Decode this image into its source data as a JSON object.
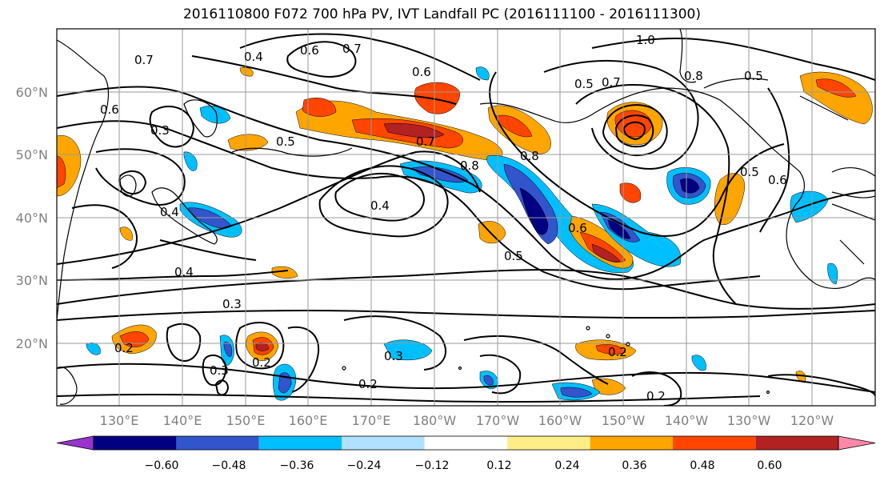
{
  "title": "2016110800 F072 700 hPa PV, IVT Landfall PC (2016111100 - 2016111300)",
  "lat_ticks": [
    "60°N",
    "50°N",
    "40°N",
    "30°N",
    "20°N"
  ],
  "lon_ticks": [
    "130°E",
    "140°E",
    "150°E",
    "160°E",
    "170°E",
    "180°W",
    "170°W",
    "160°W",
    "150°W",
    "140°W",
    "130°W",
    "120°W"
  ],
  "contour_labels": [
    "0.7",
    "0.4",
    "0.6",
    "0.7",
    "1.0",
    "0.6",
    "0.5",
    "0.7",
    "0.8",
    "0.3",
    "0.6",
    "0.5",
    "0.7",
    "0.8",
    "0.4",
    "0.6",
    "0.4",
    "0.5",
    "0.4",
    "0.3",
    "0.2",
    "0.3",
    "0.2",
    "0.3",
    "0.2",
    "0.2",
    "0.2",
    "0.5",
    "0.6",
    "0.8",
    "0.5"
  ],
  "colorbar": {
    "tick_labels": [
      "−0.60",
      "−0.48",
      "−0.36",
      "−0.24",
      "−0.12",
      "0.12",
      "0.24",
      "0.36",
      "0.48",
      "0.60"
    ],
    "colors": [
      "#9933cc",
      "#000080",
      "#3355cc",
      "#00bfff",
      "#b0e2ff",
      "#ffffff",
      "#ffee88",
      "#ffa500",
      "#ff4500",
      "#b22222",
      "#ff88aa"
    ]
  }
}
